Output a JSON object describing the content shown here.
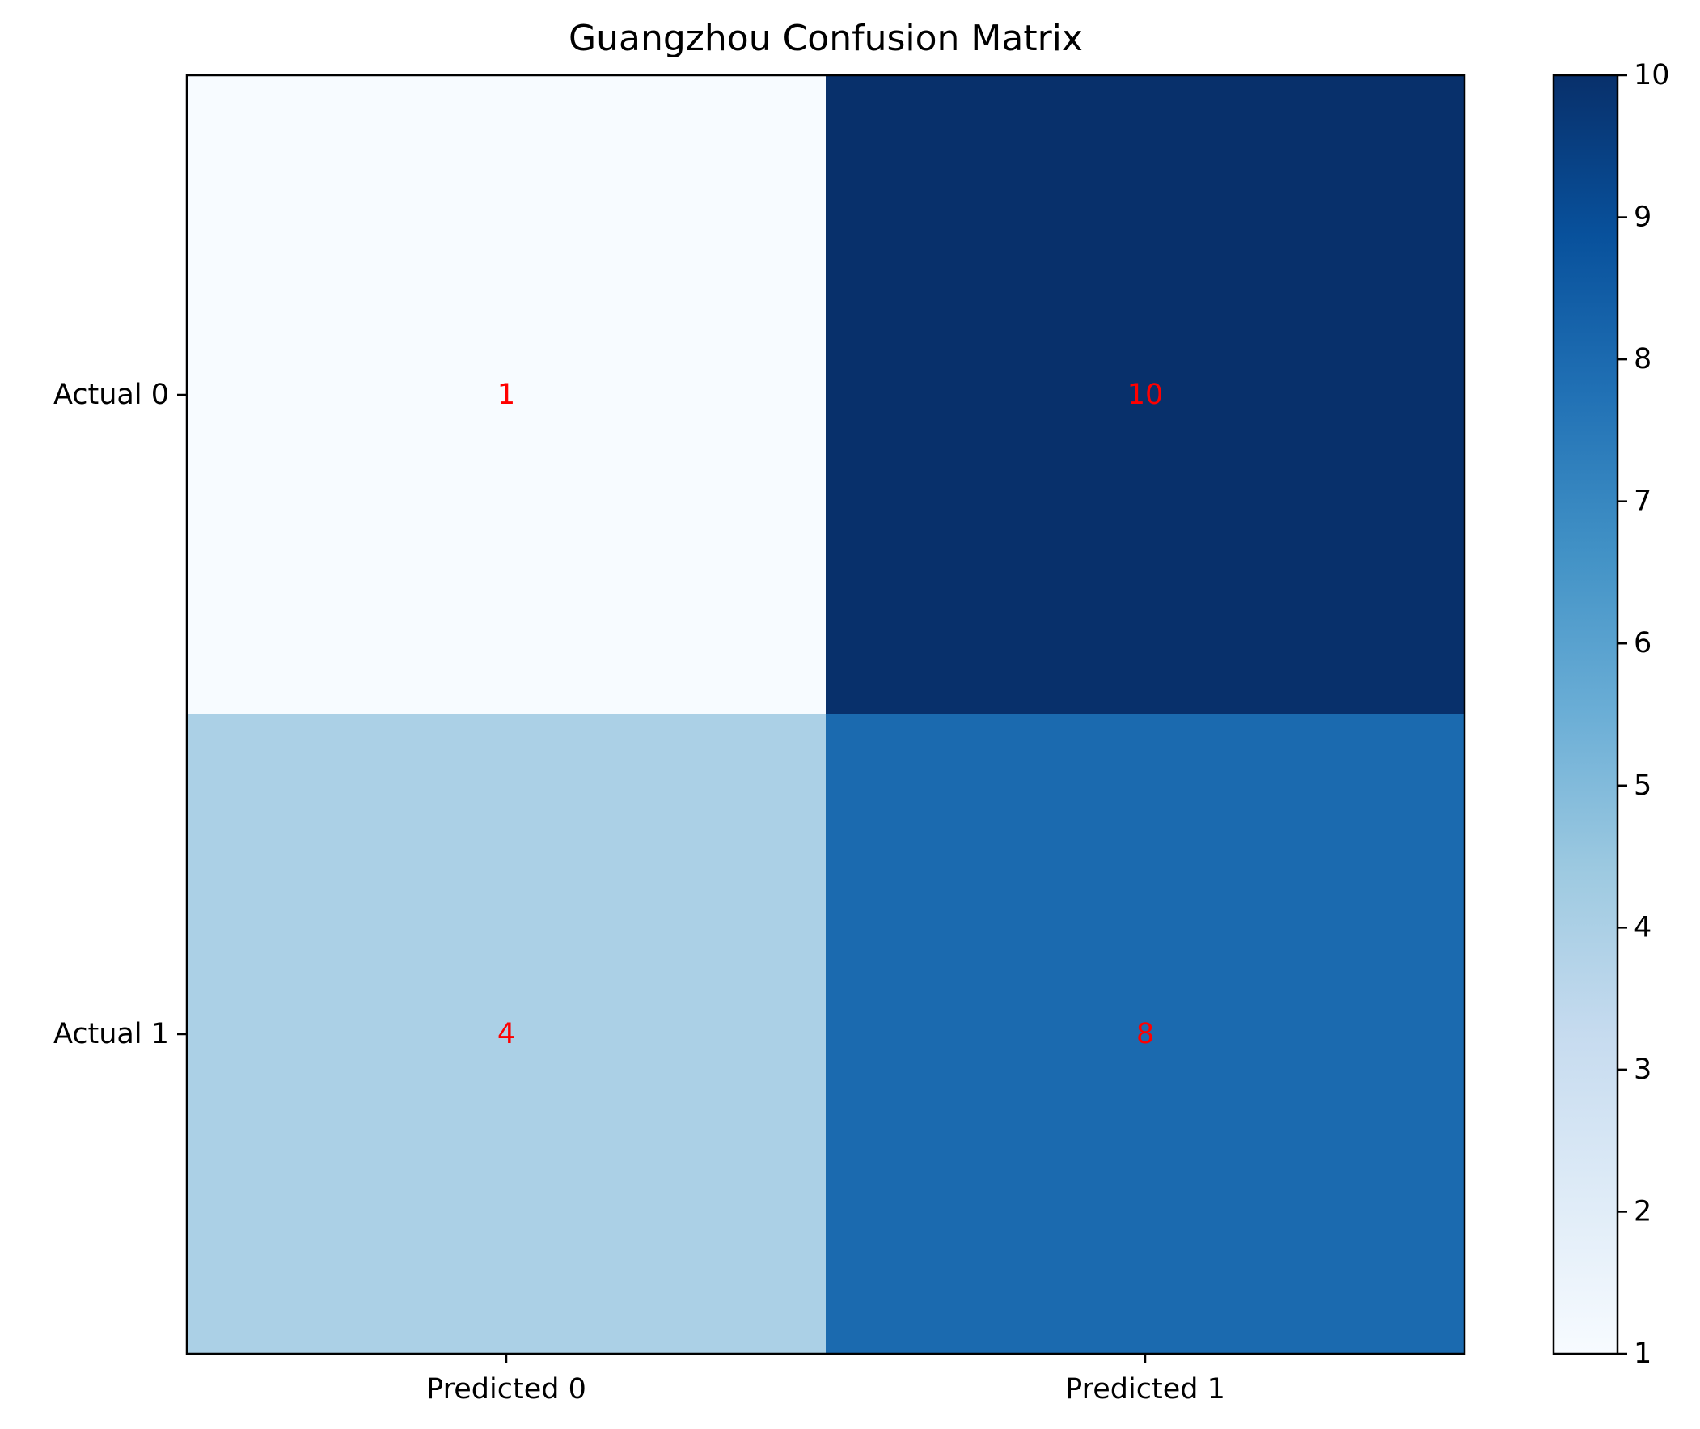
{
  "chart_data": {
    "type": "heatmap",
    "title": "Guangzhou Confusion Matrix",
    "row_labels": [
      "Actual 0",
      "Actual 1"
    ],
    "col_labels": [
      "Predicted 0",
      "Predicted 1"
    ],
    "matrix": [
      [
        1,
        10
      ],
      [
        4,
        8
      ]
    ],
    "colormap": "Blues",
    "colorbar": {
      "min": 1,
      "max": 10,
      "ticks": [
        "1",
        "2",
        "3",
        "4",
        "5",
        "6",
        "7",
        "8",
        "9",
        "10"
      ]
    },
    "annotation_color": "#ff0000",
    "grid": false
  }
}
